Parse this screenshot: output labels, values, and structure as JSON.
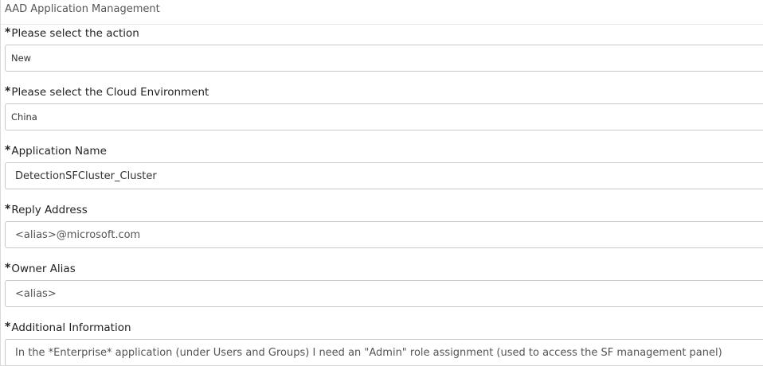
{
  "header": {
    "title": "AAD Application Management"
  },
  "form": {
    "required_marker": "*",
    "fields": [
      {
        "label": "Please select the action",
        "value": "New"
      },
      {
        "label": "Please select the Cloud Environment",
        "value": "China"
      },
      {
        "label": "Application Name",
        "value": "DetectionSFCluster_Cluster"
      },
      {
        "label": "Reply Address",
        "value": "<alias>@microsoft.com"
      },
      {
        "label": "Owner Alias",
        "value": "<alias>"
      },
      {
        "label": "Additional Information",
        "value": "In the *Enterprise* application (under Users and Groups) I need an \"Admin\" role assignment (used to access the SF management panel)"
      }
    ]
  },
  "colors": {
    "border": "#c8c8c8",
    "text": "#222222",
    "header_text": "#555555"
  }
}
